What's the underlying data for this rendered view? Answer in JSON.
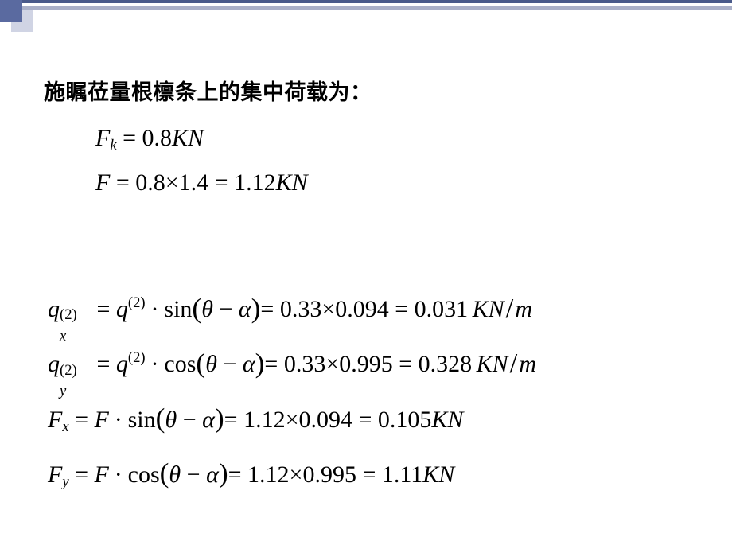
{
  "colors": {
    "border_dark": "#4a5a8a",
    "border_light": "#aab0c8",
    "square_dark": "#5a6aa0",
    "square_light": "#d0d4e4",
    "text": "#000000",
    "background": "#ffffff"
  },
  "typography": {
    "heading_family": "SimHei",
    "heading_size_pt": 20,
    "heading_weight": 700,
    "equation_family": "Times New Roman",
    "equation_size_pt": 22
  },
  "heading": "施瞩莅量根檩条上的集中荷载为：",
  "eq1": {
    "Fk_lhs": "F",
    "Fk_sub": "k",
    "Fk_rhs": " = 0.8",
    "Fk_unit": "KN",
    "F_lhs": "F",
    "F_rhs": " = 0.8×1.4 = 1.12",
    "F_unit": "KN"
  },
  "eq2": {
    "line1": {
      "var": "q",
      "sub": "x",
      "sup": "(2)",
      "rhs_var": "q",
      "rhs_sup": "(2)",
      "func": "sin",
      "arg1": "θ",
      "arg2": "α",
      "calc": "= 0.33×0.094 = 0.031",
      "unit_num": "KN",
      "unit_den": "m"
    },
    "line2": {
      "var": "q",
      "sub": "y",
      "sup": "(2)",
      "rhs_var": "q",
      "rhs_sup": "(2)",
      "func": "cos",
      "arg1": "θ",
      "arg2": "α",
      "calc": "= 0.33×0.995 = 0.328",
      "unit_num": "KN",
      "unit_den": "m"
    },
    "line3": {
      "var": "F",
      "sub": "x",
      "rhs_var": "F",
      "func": "sin",
      "arg1": "θ",
      "arg2": "α",
      "calc": "= 1.12×0.094 = 0.105",
      "unit": "KN"
    },
    "line4": {
      "var": "F",
      "sub": "y",
      "rhs_var": "F",
      "func": "cos",
      "arg1": "θ",
      "arg2": "α",
      "calc": "= 1.12×0.995 = 1.11",
      "unit": "KN"
    }
  }
}
